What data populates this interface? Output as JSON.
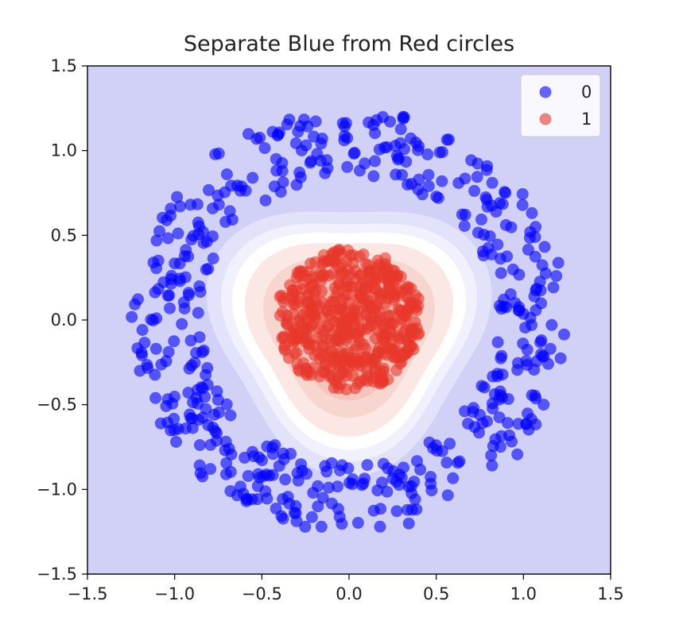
{
  "chart_data": {
    "type": "scatter",
    "title": "Separate Blue from Red circles",
    "xlabel": "",
    "ylabel": "",
    "xlim": [
      -1.5,
      1.5
    ],
    "ylim": [
      -1.5,
      1.5
    ],
    "xticks": [
      -1.5,
      -1.0,
      -0.5,
      0.0,
      0.5,
      1.0,
      1.5
    ],
    "yticks": [
      -1.5,
      -1.0,
      -0.5,
      0.0,
      0.5,
      1.0,
      1.5
    ],
    "xtick_labels": [
      "−1.5",
      "−1.0",
      "−0.5",
      "0.0",
      "0.5",
      "1.0",
      "1.5"
    ],
    "ytick_labels": [
      "−1.5",
      "−1.0",
      "−0.5",
      "0.0",
      "0.5",
      "1.0",
      "1.5"
    ],
    "grid": false,
    "legend_position": "top-right",
    "background": "decision-boundary-contour",
    "series": [
      {
        "name": "0",
        "color": "#0000ff",
        "pattern": "ring",
        "center": [
          0.0,
          0.0
        ],
        "radius_range": [
          0.85,
          1.25
        ],
        "approx_count": 500
      },
      {
        "name": "1",
        "color": "#e8372c",
        "pattern": "disk",
        "center": [
          0.0,
          0.0
        ],
        "radius_range": [
          0.0,
          0.42
        ],
        "approx_count": 500
      }
    ],
    "contour_colors": [
      "#d1d1f8",
      "#e2e2fb",
      "#f1f1fd",
      "#ffffff",
      "#fbe8e4",
      "#f8d6d0",
      "#f5c5bd",
      "#f2b3a9"
    ]
  }
}
